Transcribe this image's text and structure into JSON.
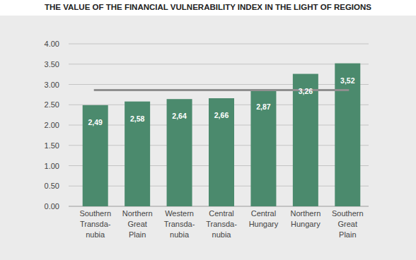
{
  "chart_data": {
    "type": "bar",
    "title": "THE VALUE OF THE FINANCIAL VULNERABILITY INDEX IN THE LIGHT OF REGIONS",
    "categories": [
      "Southern\nTransda-\nnubia",
      "Northern\nGreat\nPlain",
      "Western\nTransda-\nnubia",
      "Central\nTransda-\nnubia",
      "Central\nHungary",
      "Northern\nHungary",
      "Southern\nGreat\nPlain"
    ],
    "values": [
      2.49,
      2.58,
      2.64,
      2.66,
      2.87,
      3.26,
      3.52
    ],
    "value_labels": [
      "2,49",
      "2,58",
      "2,64",
      "2,66",
      "2,87",
      "3,26",
      "3,52"
    ],
    "average": 2.86,
    "color": "#4b8a6d",
    "ylim": [
      0,
      4
    ],
    "yticks": [
      {
        "value": 0,
        "label": "0.00"
      },
      {
        "value": 0.5,
        "label": "0.50"
      },
      {
        "value": 1,
        "label": "1.00"
      },
      {
        "value": 1.5,
        "label": "1.50"
      },
      {
        "value": 2,
        "label": "2.00"
      },
      {
        "value": 2.5,
        "label": "2.50"
      },
      {
        "value": 3,
        "label": "3.00"
      },
      {
        "value": 3.5,
        "label": "3.50"
      },
      {
        "value": 4,
        "label": "4.00"
      }
    ],
    "grid": true,
    "data_labels": true
  }
}
